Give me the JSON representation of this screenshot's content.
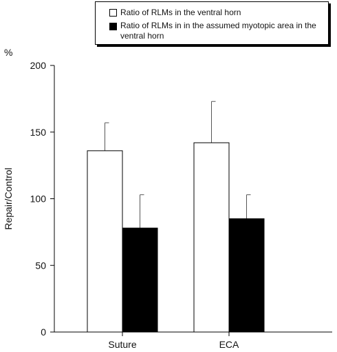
{
  "chart_data": {
    "type": "bar",
    "unit": "%",
    "ylabel": "Repair/Control",
    "xlabel": "",
    "categories": [
      "Suture",
      "ECA"
    ],
    "ylim": [
      0,
      200
    ],
    "yticks": [
      0,
      50,
      100,
      150,
      200
    ],
    "grid": false,
    "legend_position": "top-right",
    "series": [
      {
        "name": "Ratio of RLMs in the ventral horn",
        "fill": "#ffffff",
        "values": [
          136,
          142
        ],
        "errors": [
          21,
          31
        ]
      },
      {
        "name": "Ratio of RLMs in in the assumed myotopic area in the ventral horn",
        "fill": "#000000",
        "values": [
          78,
          85
        ],
        "errors": [
          25,
          18
        ]
      }
    ]
  }
}
